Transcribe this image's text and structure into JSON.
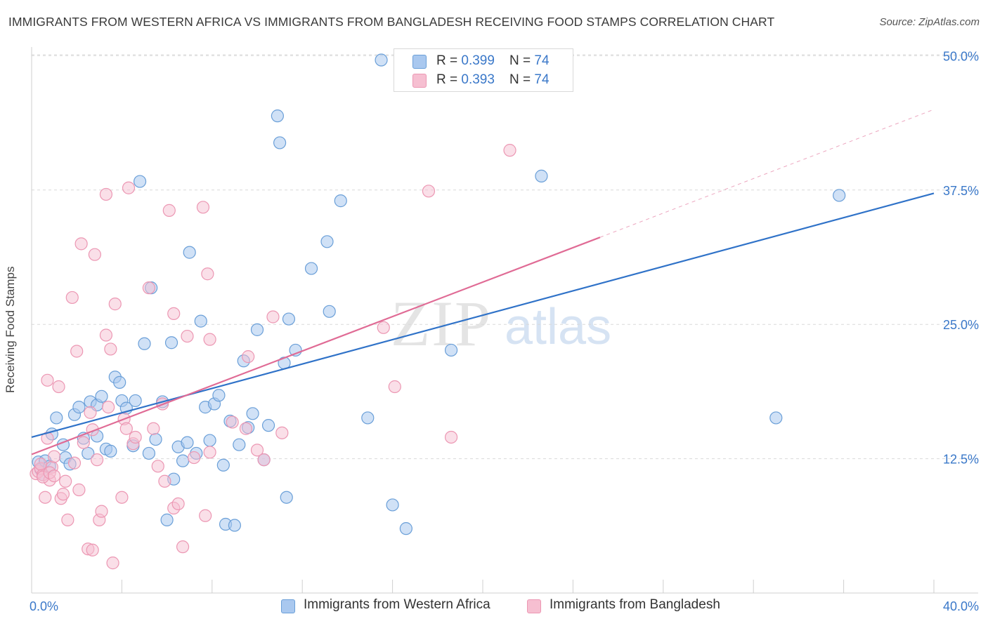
{
  "header": {
    "title": "IMMIGRANTS FROM WESTERN AFRICA VS IMMIGRANTS FROM BANGLADESH RECEIVING FOOD STAMPS CORRELATION CHART",
    "source": "Source: ZipAtlas.com"
  },
  "legend": {
    "series1": {
      "r_label": "R = ",
      "r_value": "0.399",
      "n_label": "N = ",
      "n_value": "74"
    },
    "series2": {
      "r_label": "R = ",
      "r_value": "0.393",
      "n_label": "N = ",
      "n_value": "74"
    }
  },
  "watermark": {
    "zip": "ZIP",
    "atlas": "atlas"
  },
  "colors": {
    "blue_fill": "#a9c8ef",
    "blue_stroke": "#6a9fd8",
    "blue_line": "#2f72c8",
    "pink_fill": "#f6bfd1",
    "pink_stroke": "#ec97b3",
    "pink_line": "#e06b95",
    "grid": "#d9d9d9",
    "axis_label": "#3a78c9"
  },
  "chart_data": {
    "type": "scatter",
    "title": "IMMIGRANTS FROM WESTERN AFRICA VS IMMIGRANTS FROM BANGLADESH RECEIVING FOOD STAMPS CORRELATION CHART",
    "xlabel": "",
    "ylabel": "Receiving Food Stamps",
    "xlim": [
      0,
      40
    ],
    "ylim": [
      0,
      52
    ],
    "x_tick_labels": [
      "0.0%",
      "40.0%"
    ],
    "y_ticks": [
      12.5,
      25.0,
      37.5,
      50.0
    ],
    "y_tick_labels": [
      "12.5%",
      "25.0%",
      "37.5%",
      "50.0%"
    ],
    "grid": "horizontal dashed",
    "legend_position": "bottom",
    "series": [
      {
        "name": "Immigrants from Western Africa",
        "color": "#a9c8ef",
        "points": [
          [
            0.3,
            12.2
          ],
          [
            0.4,
            11.5
          ],
          [
            0.5,
            11.0
          ],
          [
            0.6,
            12.3
          ],
          [
            0.8,
            11.8
          ],
          [
            0.9,
            14.8
          ],
          [
            1.1,
            16.3
          ],
          [
            1.4,
            13.8
          ],
          [
            1.5,
            12.6
          ],
          [
            1.7,
            12.0
          ],
          [
            1.9,
            16.6
          ],
          [
            2.1,
            17.3
          ],
          [
            2.3,
            14.4
          ],
          [
            2.5,
            13.0
          ],
          [
            2.6,
            17.8
          ],
          [
            2.9,
            17.5
          ],
          [
            2.9,
            14.6
          ],
          [
            3.1,
            18.3
          ],
          [
            3.3,
            13.4
          ],
          [
            3.5,
            13.2
          ],
          [
            3.7,
            20.1
          ],
          [
            3.9,
            19.6
          ],
          [
            4.0,
            17.9
          ],
          [
            4.2,
            17.2
          ],
          [
            4.5,
            13.7
          ],
          [
            4.6,
            17.9
          ],
          [
            4.8,
            38.3
          ],
          [
            5.0,
            23.2
          ],
          [
            5.2,
            13.0
          ],
          [
            5.3,
            28.4
          ],
          [
            5.5,
            14.3
          ],
          [
            5.8,
            17.8
          ],
          [
            6.0,
            6.8
          ],
          [
            6.2,
            23.3
          ],
          [
            6.3,
            10.6
          ],
          [
            6.5,
            13.6
          ],
          [
            6.7,
            12.3
          ],
          [
            6.9,
            14.0
          ],
          [
            7.0,
            31.7
          ],
          [
            7.3,
            13.0
          ],
          [
            7.5,
            25.3
          ],
          [
            7.7,
            17.3
          ],
          [
            7.9,
            14.2
          ],
          [
            8.1,
            17.6
          ],
          [
            8.3,
            18.4
          ],
          [
            8.5,
            11.9
          ],
          [
            8.6,
            6.4
          ],
          [
            8.8,
            16.0
          ],
          [
            9.0,
            6.3
          ],
          [
            9.2,
            13.8
          ],
          [
            9.4,
            21.6
          ],
          [
            9.6,
            15.4
          ],
          [
            9.8,
            16.7
          ],
          [
            10.0,
            24.5
          ],
          [
            10.3,
            12.4
          ],
          [
            10.5,
            15.6
          ],
          [
            10.9,
            44.4
          ],
          [
            11.0,
            41.9
          ],
          [
            11.2,
            21.4
          ],
          [
            11.3,
            8.9
          ],
          [
            11.4,
            25.5
          ],
          [
            11.7,
            22.6
          ],
          [
            12.4,
            30.2
          ],
          [
            13.1,
            32.7
          ],
          [
            13.2,
            26.2
          ],
          [
            13.7,
            36.5
          ],
          [
            14.9,
            16.3
          ],
          [
            15.5,
            49.6
          ],
          [
            16.0,
            8.2
          ],
          [
            16.6,
            6.0
          ],
          [
            18.6,
            22.6
          ],
          [
            22.6,
            38.8
          ],
          [
            33.0,
            16.3
          ],
          [
            35.8,
            37.0
          ]
        ],
        "trend": {
          "x": [
            0,
            40
          ],
          "y": [
            14.5,
            37.2
          ]
        }
      },
      {
        "name": "Immigrants from Bangladesh",
        "color": "#f6bfd1",
        "points": [
          [
            0.2,
            11.1
          ],
          [
            0.3,
            11.3
          ],
          [
            0.4,
            11.6
          ],
          [
            0.5,
            11.0
          ],
          [
            0.6,
            8.9
          ],
          [
            0.7,
            14.4
          ],
          [
            0.7,
            19.8
          ],
          [
            0.8,
            10.5
          ],
          [
            0.9,
            11.7
          ],
          [
            1.0,
            12.7
          ],
          [
            1.2,
            19.2
          ],
          [
            1.3,
            8.8
          ],
          [
            1.4,
            9.2
          ],
          [
            1.5,
            10.4
          ],
          [
            1.6,
            6.8
          ],
          [
            1.8,
            27.5
          ],
          [
            1.9,
            12.1
          ],
          [
            2.0,
            22.5
          ],
          [
            2.1,
            9.6
          ],
          [
            2.2,
            32.5
          ],
          [
            2.3,
            14.0
          ],
          [
            2.5,
            4.1
          ],
          [
            2.6,
            16.8
          ],
          [
            2.7,
            15.2
          ],
          [
            2.7,
            4.0
          ],
          [
            2.8,
            31.5
          ],
          [
            2.9,
            12.4
          ],
          [
            3.0,
            6.8
          ],
          [
            3.1,
            7.6
          ],
          [
            3.3,
            37.1
          ],
          [
            3.3,
            24.0
          ],
          [
            3.4,
            17.3
          ],
          [
            3.5,
            22.7
          ],
          [
            3.6,
            2.8
          ],
          [
            3.7,
            26.9
          ],
          [
            4.0,
            8.9
          ],
          [
            4.1,
            16.2
          ],
          [
            4.2,
            15.3
          ],
          [
            4.3,
            37.7
          ],
          [
            4.5,
            13.9
          ],
          [
            4.6,
            14.5
          ],
          [
            5.2,
            28.4
          ],
          [
            5.4,
            15.3
          ],
          [
            5.6,
            11.8
          ],
          [
            5.8,
            17.6
          ],
          [
            5.9,
            10.4
          ],
          [
            6.1,
            35.6
          ],
          [
            6.3,
            26.0
          ],
          [
            6.3,
            7.9
          ],
          [
            6.5,
            8.3
          ],
          [
            6.7,
            4.3
          ],
          [
            6.9,
            23.9
          ],
          [
            7.2,
            12.6
          ],
          [
            7.6,
            35.9
          ],
          [
            7.7,
            7.2
          ],
          [
            7.8,
            29.7
          ],
          [
            7.9,
            13.1
          ],
          [
            7.9,
            23.6
          ],
          [
            8.9,
            15.9
          ],
          [
            9.5,
            15.3
          ],
          [
            9.6,
            22.0
          ],
          [
            10.0,
            13.3
          ],
          [
            10.3,
            12.4
          ],
          [
            10.7,
            25.7
          ],
          [
            11.1,
            14.9
          ],
          [
            15.6,
            24.7
          ],
          [
            16.1,
            19.2
          ],
          [
            17.6,
            37.4
          ],
          [
            18.6,
            14.5
          ],
          [
            21.2,
            41.2
          ],
          [
            0.4,
            12.0
          ],
          [
            0.5,
            10.8
          ],
          [
            0.8,
            11.2
          ],
          [
            1.0,
            10.9
          ]
        ],
        "trend": {
          "x": [
            0,
            25.2
          ],
          "y": [
            12.9,
            33.1
          ]
        },
        "trend_extension": {
          "x": [
            25.2,
            40
          ],
          "y": [
            33.1,
            45.0
          ]
        }
      }
    ]
  }
}
